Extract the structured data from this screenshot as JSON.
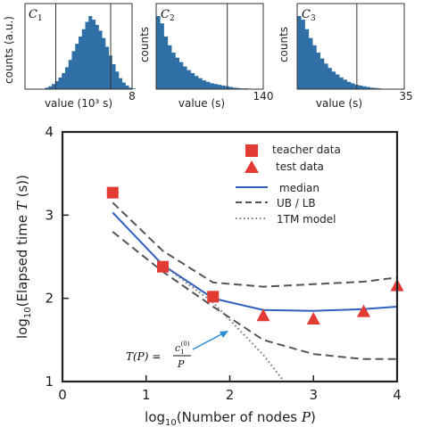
{
  "chart_data": [
    {
      "type": "bar",
      "panel_label": "C",
      "panel_sub": "1",
      "ylabel": "counts (a.u.)",
      "xlabel": "value (10³ s)",
      "x_tick_label": "8",
      "xlim": [
        0,
        8
      ],
      "bin_width": 0.25,
      "values": [
        0,
        0,
        0,
        0,
        0,
        0,
        2,
        4,
        7,
        11,
        16,
        22,
        30,
        40,
        52,
        62,
        72,
        82,
        92,
        100,
        95,
        88,
        80,
        70,
        58,
        46,
        34,
        24,
        15,
        9,
        5,
        2,
        1
      ],
      "vlines": [
        2.3,
        6.4
      ],
      "color": "#2f6fa6"
    },
    {
      "type": "bar",
      "panel_label": "C",
      "panel_sub": "2",
      "ylabel": "counts",
      "xlabel": "value (s)",
      "x_tick_label": "140",
      "xlim": [
        0,
        140
      ],
      "bin_width": 5,
      "values": [
        100,
        90,
        72,
        60,
        50,
        43,
        37,
        31,
        26,
        22,
        18,
        15,
        12,
        10,
        8,
        7,
        6,
        5,
        4,
        3,
        2,
        1.5,
        1,
        1,
        0.5,
        0.5,
        0.3,
        0.2
      ],
      "vlines": [
        93
      ],
      "color": "#2f6fa6"
    },
    {
      "type": "bar",
      "panel_label": "C",
      "panel_sub": "3",
      "ylabel": "counts",
      "xlabel": "value (s)",
      "x_tick_label": "35",
      "xlim": [
        0,
        35
      ],
      "bin_width": 1.25,
      "values": [
        100,
        95,
        82,
        70,
        60,
        50,
        42,
        35,
        29,
        24,
        20,
        16,
        13,
        10,
        8,
        6,
        5,
        4,
        3,
        2,
        1.5,
        1,
        0.6,
        0.4,
        0.3,
        0.2,
        0.1
      ],
      "vlines": [
        19.5
      ],
      "color": "#2f6fa6"
    },
    {
      "type": "scatter+line",
      "xlabel_pre": "log",
      "xlabel_sub": "10",
      "xlabel_text": "(Number of nodes ",
      "xlabel_var": "P",
      "xlabel_post": ")",
      "ylabel_pre": "log",
      "ylabel_sub": "10",
      "ylabel_text": "(Elapsed time ",
      "ylabel_var": "T",
      "ylabel_post": " (s))",
      "xlim": [
        0,
        4
      ],
      "ylim": [
        1,
        4
      ],
      "x_ticks": [
        "0",
        "1",
        "2",
        "3",
        "4"
      ],
      "y_ticks": [
        "1",
        "2",
        "3",
        "4"
      ],
      "legend": [
        "teacher data",
        "test data",
        "median",
        "UB / LB",
        "1TM model"
      ],
      "legend_position": "top-right",
      "series": [
        {
          "name": "teacher data",
          "marker": "square",
          "color": "#e23b34",
          "x": [
            0.6,
            1.2,
            1.8
          ],
          "y": [
            3.27,
            2.38,
            2.02
          ]
        },
        {
          "name": "test data",
          "marker": "triangle",
          "color": "#e23b34",
          "x": [
            2.4,
            3.0,
            3.6,
            4.0
          ],
          "y": [
            1.79,
            1.75,
            1.84,
            2.15
          ]
        },
        {
          "name": "median",
          "style": "solid",
          "color": "#2f5fbf",
          "x": [
            0.6,
            1.2,
            1.8,
            2.4,
            3.0,
            3.6,
            4.0
          ],
          "y": [
            3.03,
            2.4,
            2.0,
            1.86,
            1.85,
            1.87,
            1.9
          ]
        },
        {
          "name": "UB",
          "style": "dashed",
          "color": "#555555",
          "x": [
            0.6,
            1.2,
            1.8,
            2.4,
            3.0,
            3.6,
            4.0
          ],
          "y": [
            3.15,
            2.57,
            2.19,
            2.14,
            2.17,
            2.2,
            2.25
          ]
        },
        {
          "name": "LB",
          "style": "dashed",
          "color": "#555555",
          "x": [
            0.6,
            1.2,
            1.8,
            2.4,
            3.0,
            3.6,
            4.0
          ],
          "y": [
            2.8,
            2.32,
            1.9,
            1.5,
            1.33,
            1.27,
            1.27
          ]
        },
        {
          "name": "1TM model",
          "style": "dotted",
          "color": "#777777",
          "x": [
            1.2,
            1.8,
            2.4,
            2.65
          ],
          "y": [
            2.4,
            1.95,
            1.32,
            1.0
          ]
        }
      ],
      "annotation": {
        "lhs": "T(P) =",
        "numerator": "c",
        "num_sub": "1",
        "num_sup": "(0)",
        "denominator": "P",
        "arrow_color": "#2f8ad6"
      }
    }
  ]
}
